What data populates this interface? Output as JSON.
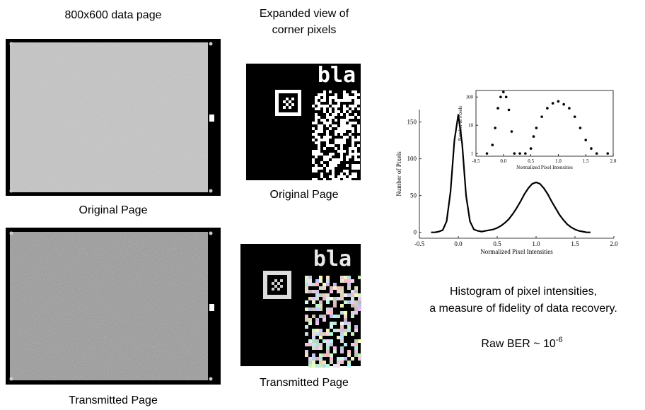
{
  "header": {
    "left": "800x600 data page",
    "middle_line1": "Expanded view of",
    "middle_line2": "corner pixels"
  },
  "panels": {
    "original_page": "Original Page",
    "transmitted_page": "Transmitted Page",
    "original_zoom": "Original Page",
    "transmitted_zoom": "Transmitted Page",
    "zoom_text": "bla"
  },
  "caption": {
    "line1": "Histogram of pixel intensities,",
    "line2": "a measure of fidelity of data recovery.",
    "ber_base": "Raw BER ~ 10",
    "ber_exponent": "-6"
  },
  "chart_data": [
    {
      "type": "line",
      "xlabel": "Normalized Pixel Intensities",
      "ylabel": "Number of Pixels",
      "x": [
        -0.35,
        -0.3,
        -0.25,
        -0.2,
        -0.15,
        -0.1,
        -0.05,
        0,
        0.05,
        0.1,
        0.15,
        0.2,
        0.25,
        0.3,
        0.35,
        0.4,
        0.45,
        0.5,
        0.55,
        0.6,
        0.65,
        0.7,
        0.75,
        0.8,
        0.85,
        0.9,
        0.95,
        1.0,
        1.05,
        1.1,
        1.15,
        1.2,
        1.25,
        1.3,
        1.35,
        1.4,
        1.45,
        1.5,
        1.55,
        1.6,
        1.65,
        1.7
      ],
      "series": [
        {
          "color": "#000000",
          "values": [
            0,
            0,
            1,
            3,
            15,
            55,
            125,
            160,
            120,
            50,
            15,
            4,
            2,
            1,
            2,
            3,
            4,
            6,
            9,
            13,
            18,
            25,
            33,
            42,
            52,
            60,
            66,
            68,
            66,
            60,
            52,
            42,
            33,
            24,
            17,
            11,
            7,
            4,
            2,
            1,
            0,
            0
          ]
        }
      ],
      "xlim": [
        -0.5,
        2.0
      ],
      "ylim": [
        -8,
        167
      ],
      "xticks": [
        {
          "value": -0.5,
          "label": "-0.5"
        },
        {
          "value": 0,
          "label": "0.0"
        },
        {
          "value": 0.5,
          "label": "0.5"
        },
        {
          "value": 1,
          "label": "1.0"
        },
        {
          "value": 1.5,
          "label": "1.5"
        },
        {
          "value": 2,
          "label": "2.0"
        }
      ],
      "yticks": [
        0,
        50,
        100,
        150
      ]
    },
    {
      "type": "scatter",
      "xlabel": "Normalized Pixel Intensities",
      "ylabel": "Number of Pixels",
      "log_y": true,
      "x": [
        -0.3,
        -0.2,
        -0.15,
        -0.1,
        -0.05,
        0,
        0.05,
        0.1,
        0.15,
        0.2,
        0.3,
        0.4,
        0.5,
        0.55,
        0.6,
        0.7,
        0.8,
        0.9,
        1.0,
        1.1,
        1.2,
        1.3,
        1.4,
        1.5,
        1.6,
        1.7,
        1.9
      ],
      "series": [
        {
          "color": "#000000",
          "values": [
            1,
            2,
            8,
            40,
            100,
            150,
            100,
            35,
            6,
            1,
            1,
            1,
            1.5,
            4,
            8,
            20,
            40,
            60,
            70,
            55,
            40,
            20,
            8,
            3,
            1.5,
            1,
            1
          ]
        }
      ],
      "xlim": [
        -0.5,
        2.0
      ],
      "ylim": [
        0.8,
        170
      ],
      "xticks": [
        {
          "value": -0.5,
          "label": "-0.5"
        },
        {
          "value": 0,
          "label": "0.0"
        },
        {
          "value": 0.5,
          "label": "0.5"
        },
        {
          "value": 1,
          "label": "1.0"
        },
        {
          "value": 1.5,
          "label": "1.5"
        },
        {
          "value": 2,
          "label": "2.0"
        }
      ],
      "yticks": [
        1,
        10,
        100
      ]
    }
  ]
}
